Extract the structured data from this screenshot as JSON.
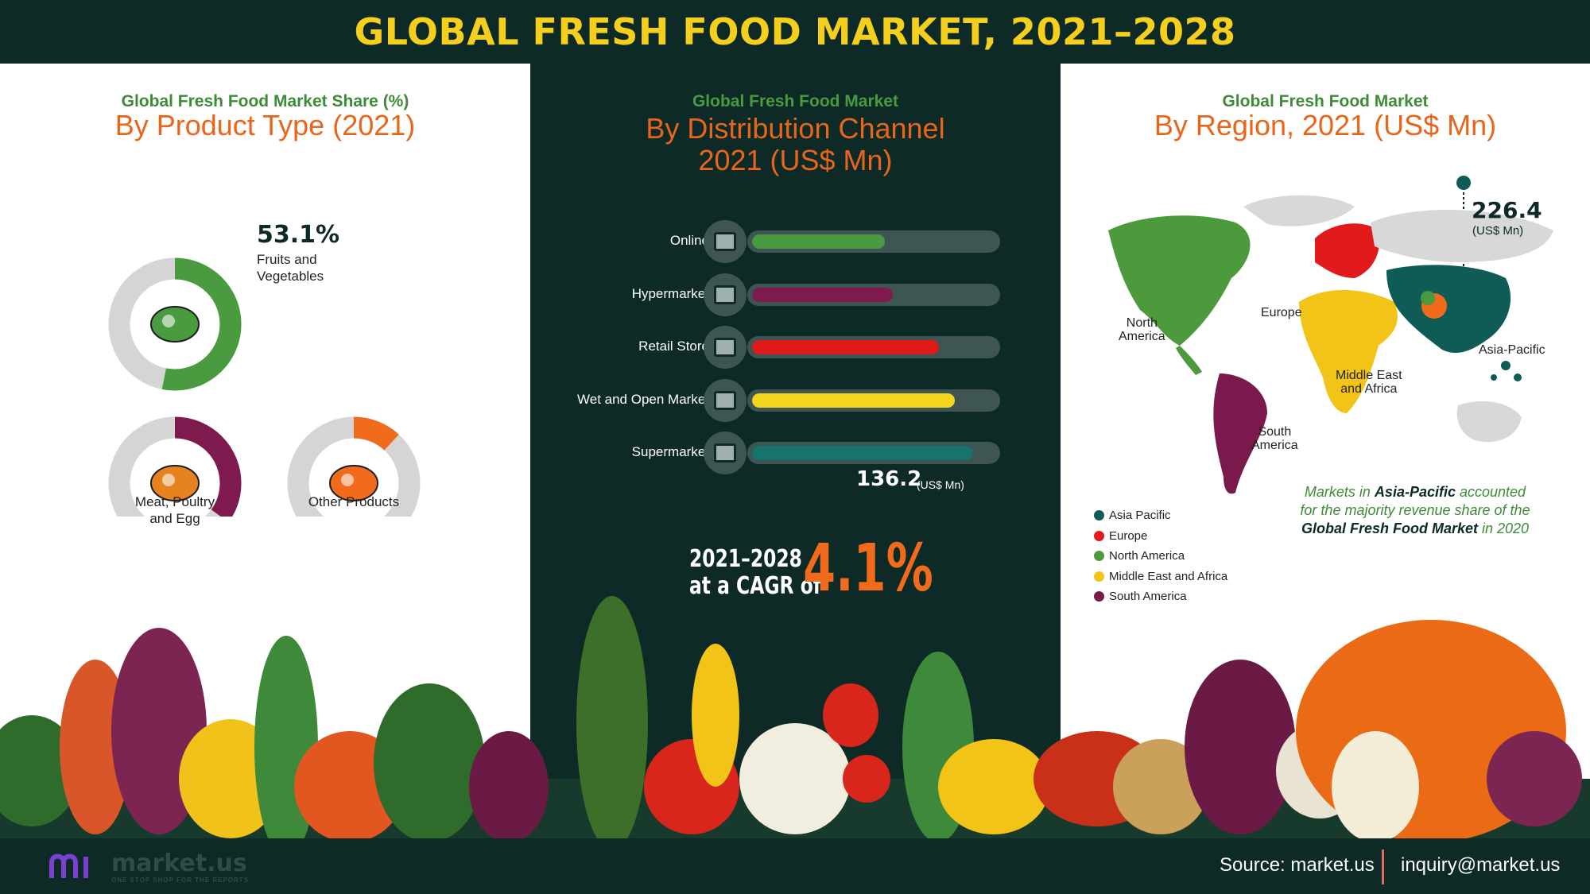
{
  "title": "GLOBAL FRESH FOOD MARKET, 2021–2028",
  "left": {
    "subtitle": "Global Fresh Food Market Share (%)",
    "heading": "By Product Type (2021)",
    "highlight_value": "53.1%",
    "highlight_label_1": "Fruits and",
    "highlight_label_2": "Vegetables",
    "meat_label_1": "Meat, Poultry",
    "meat_label_2": "and Egg",
    "other_label": "Other Products"
  },
  "middle": {
    "subtitle": "Global Fresh Food Market",
    "heading_1": "By Distribution Channel",
    "heading_2": "2021 (US$ Mn)",
    "value_label": "136.2",
    "value_unit": "(US$ Mn)",
    "cagr_years_1": "2021–2028",
    "cagr_years_2": "at a CAGR of",
    "cagr_value": "4.1%"
  },
  "right": {
    "subtitle": "Global Fresh Food Market",
    "heading": "By Region, 2021 (US$ Mn)",
    "value": "226.4",
    "value_unit": "(US$ Mn)",
    "regions": {
      "north_america_1": "North",
      "north_america_2": "America",
      "europe": "Europe",
      "asia_pacific": "Asia-Pacific",
      "mea_1": "Middle East",
      "mea_2": "and Africa",
      "south_america_1": "South",
      "south_america_2": "America"
    },
    "note_1a": "Markets in ",
    "note_1b": "Asia-Pacific",
    "note_1c": " accounted",
    "note_2": "for the majority revenue share of the",
    "note_3a": "Global Fresh Food Market",
    "note_3b": " in 2020"
  },
  "legend": [
    {
      "label": "Asia Pacific",
      "color": "#0f5b56"
    },
    {
      "label": "Europe",
      "color": "#e11b1b"
    },
    {
      "label": "North America",
      "color": "#4d9a3d"
    },
    {
      "label": "Middle East and Africa",
      "color": "#f2c417"
    },
    {
      "label": "South America",
      "color": "#7a1a4c"
    }
  ],
  "footer": {
    "logo_text": "market.us",
    "logo_tagline": "ONE STOP SHOP FOR THE REPORTS",
    "source": "Source: market.us",
    "email": "inquiry@market.us"
  },
  "colors": {
    "dark_bg": "#0d2a26",
    "title_yellow": "#f5cf1e",
    "accent_orange": "#e8651a",
    "accent_green": "#3d8b37"
  },
  "chart_data": [
    {
      "type": "pie",
      "title": "By Product Type (2021)",
      "categories": [
        "Fruits and Vegetables",
        "Meat, Poultry and Egg",
        "Other Products"
      ],
      "values": [
        53.1,
        35.0,
        11.9
      ],
      "unit": "%",
      "colors": [
        "#4a9a3f",
        "#7e1a4e",
        "#f26b1d"
      ]
    },
    {
      "type": "bar",
      "title": "By Distribution Channel 2021 (US$ Mn)",
      "orientation": "horizontal",
      "categories": [
        "Online",
        "Hypermarket",
        "Retail Store",
        "Wet and Open Market",
        "Supermarket"
      ],
      "values": [
        82,
        87,
        115,
        125,
        136.2
      ],
      "xlim": [
        0,
        150
      ],
      "colors": [
        "#4a9a3f",
        "#7e1a4e",
        "#e01919",
        "#f5d61c",
        "#16736d"
      ],
      "annotation": "136.2 (US$ Mn)"
    },
    {
      "type": "map",
      "title": "By Region, 2021 (US$ Mn)",
      "categories": [
        "Asia Pacific",
        "Europe",
        "North America",
        "Middle East and Africa",
        "South America"
      ],
      "highlight": {
        "region": "Asia-Pacific",
        "value": 226.4
      }
    }
  ]
}
